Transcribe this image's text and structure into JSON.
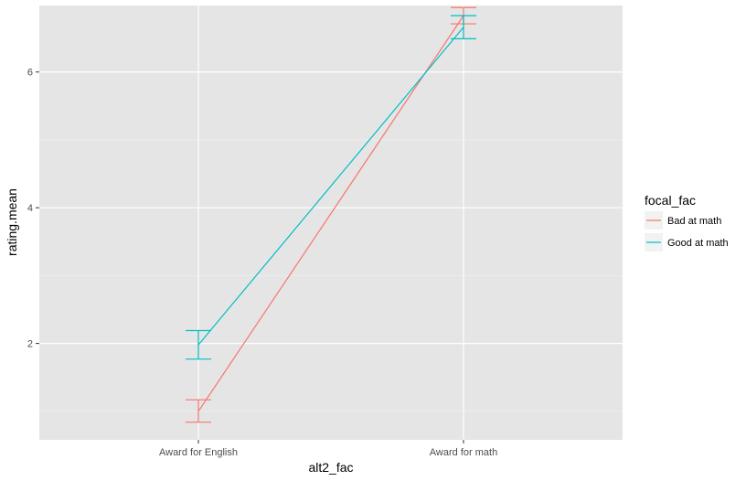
{
  "chart_data": {
    "type": "line",
    "xlabel": "alt2_fac",
    "ylabel": "rating.mean",
    "categories": [
      "Award for English",
      "Award for math"
    ],
    "ylim": [
      0.58,
      6.98
    ],
    "yticks": [
      2,
      4,
      6
    ],
    "grid": true,
    "legend_title": "focal_fac",
    "legend_position": "right",
    "series": [
      {
        "name": "Bad at math",
        "color": "#F8766D",
        "values": [
          1.0,
          6.83
        ],
        "error_low": [
          0.84,
          6.71
        ],
        "error_high": [
          1.17,
          6.95
        ]
      },
      {
        "name": "Good at math",
        "color": "#00BFC4",
        "values": [
          1.98,
          6.66
        ],
        "error_low": [
          1.77,
          6.49
        ],
        "error_high": [
          2.19,
          6.83
        ]
      }
    ],
    "panel_background": "#E5E5E5",
    "gridline_color": "#FFFFFF"
  }
}
